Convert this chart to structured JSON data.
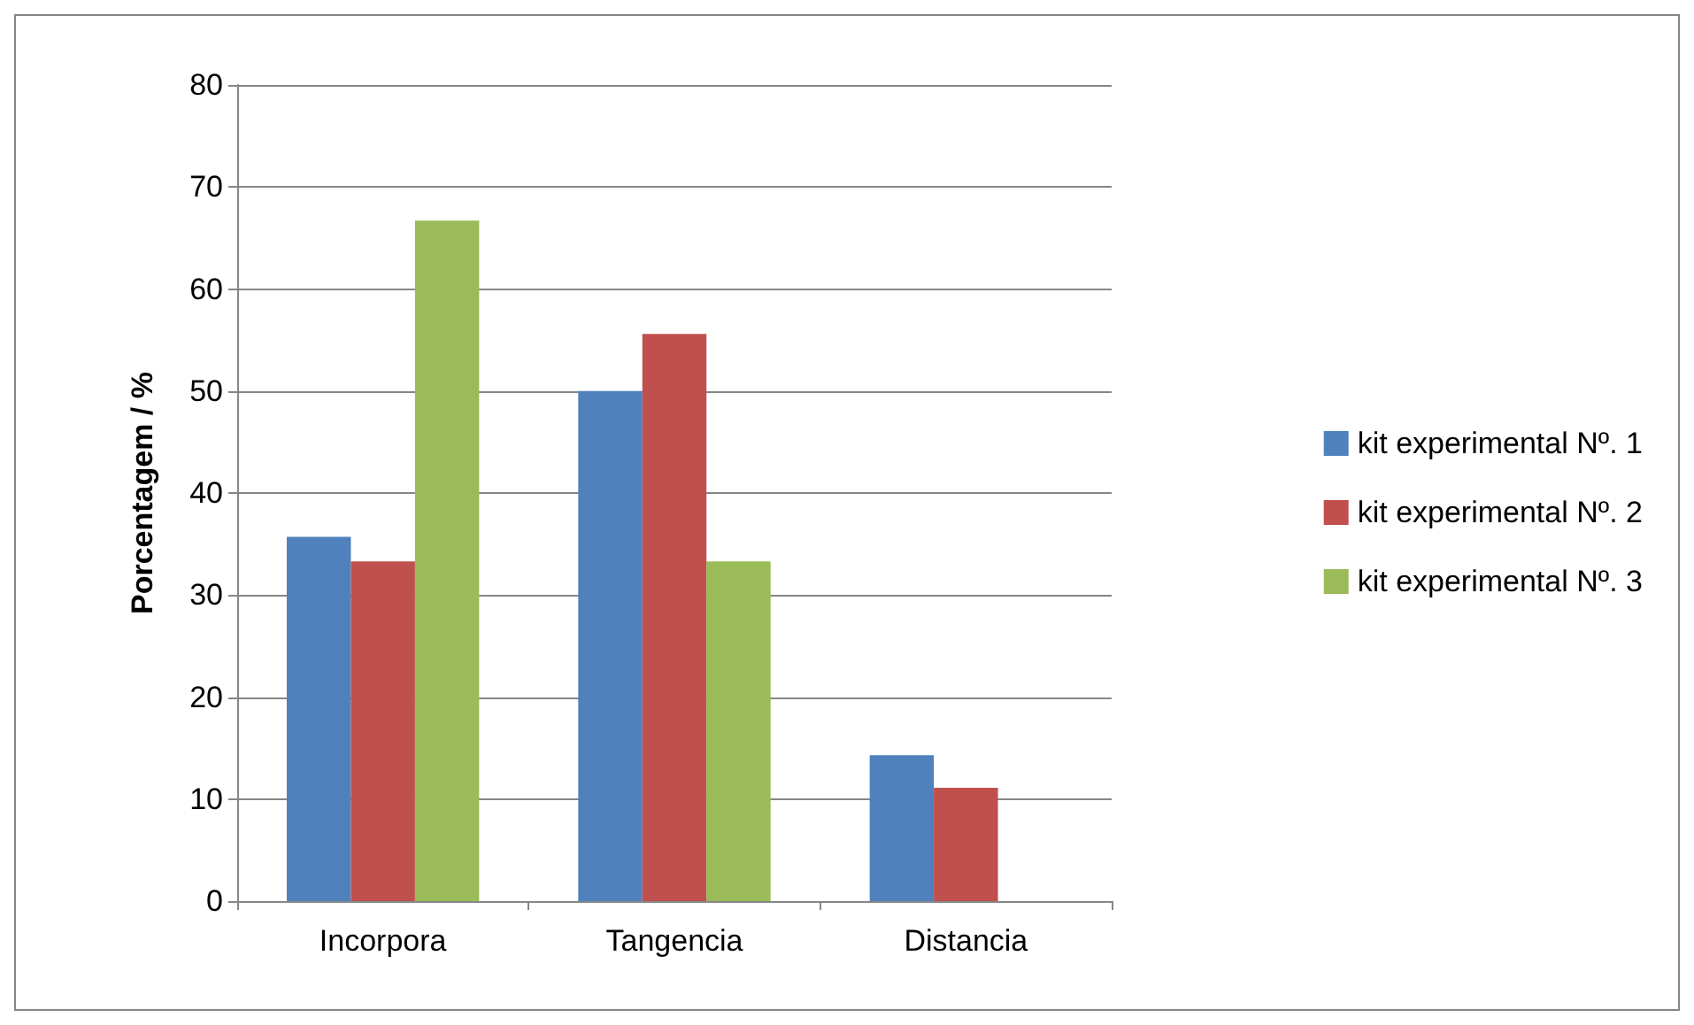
{
  "chart_data": {
    "type": "bar",
    "ylabel": "Porcentagem / %",
    "categories": [
      "Incorpora",
      "Tangencia",
      "Distancia"
    ],
    "series": [
      {
        "name": "kit experimental Nº. 1",
        "color": "#4f81bd",
        "values": [
          35.7,
          50,
          14.3
        ]
      },
      {
        "name": "kit experimental Nº. 2",
        "color": "#c0504d",
        "values": [
          33.3,
          55.6,
          11.1
        ]
      },
      {
        "name": "kit experimental Nº. 3",
        "color": "#9bbb59",
        "values": [
          66.7,
          33.3,
          0
        ]
      }
    ],
    "ylim": [
      0,
      80
    ],
    "yticks": [
      0,
      10,
      20,
      30,
      40,
      50,
      60,
      70,
      80
    ],
    "grid": "y",
    "legend": "right"
  }
}
